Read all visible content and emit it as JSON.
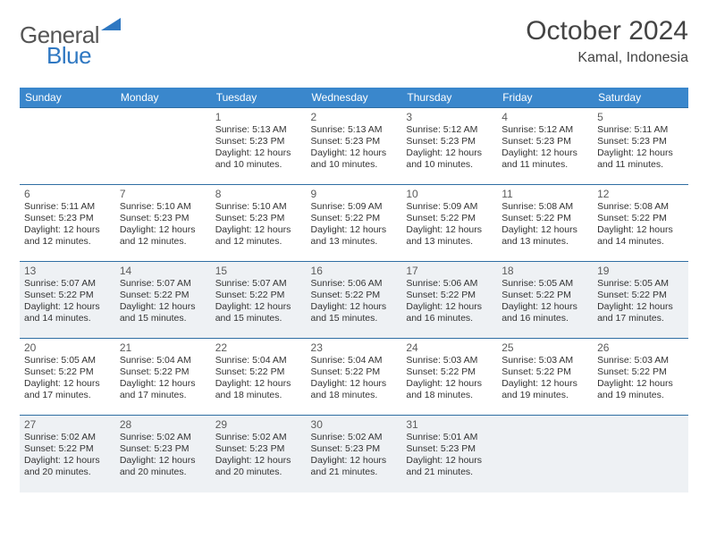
{
  "brand": {
    "part1": "General",
    "part2": "Blue"
  },
  "title": "October 2024",
  "location": "Kamal, Indonesia",
  "colors": {
    "header_bg": "#3a87cc",
    "header_text": "#ffffff",
    "row_border": "#2f6ea3",
    "shaded_bg": "#eef1f4",
    "text": "#333333",
    "brand_gray": "#555555",
    "brand_blue": "#2f78c2",
    "background": "#ffffff"
  },
  "typography": {
    "title_fontsize": 30,
    "location_fontsize": 16,
    "dayheader_fontsize": 12,
    "cell_fontsize": 10.5,
    "font_family": "Arial"
  },
  "day_headers": [
    "Sunday",
    "Monday",
    "Tuesday",
    "Wednesday",
    "Thursday",
    "Friday",
    "Saturday"
  ],
  "layout": {
    "first_weekday_index": 2,
    "num_days": 31,
    "shaded_rows": [
      2,
      4
    ]
  },
  "days": {
    "1": {
      "sunrise": "5:13 AM",
      "sunset": "5:23 PM",
      "daylight": "12 hours and 10 minutes."
    },
    "2": {
      "sunrise": "5:13 AM",
      "sunset": "5:23 PM",
      "daylight": "12 hours and 10 minutes."
    },
    "3": {
      "sunrise": "5:12 AM",
      "sunset": "5:23 PM",
      "daylight": "12 hours and 10 minutes."
    },
    "4": {
      "sunrise": "5:12 AM",
      "sunset": "5:23 PM",
      "daylight": "12 hours and 11 minutes."
    },
    "5": {
      "sunrise": "5:11 AM",
      "sunset": "5:23 PM",
      "daylight": "12 hours and 11 minutes."
    },
    "6": {
      "sunrise": "5:11 AM",
      "sunset": "5:23 PM",
      "daylight": "12 hours and 12 minutes."
    },
    "7": {
      "sunrise": "5:10 AM",
      "sunset": "5:23 PM",
      "daylight": "12 hours and 12 minutes."
    },
    "8": {
      "sunrise": "5:10 AM",
      "sunset": "5:23 PM",
      "daylight": "12 hours and 12 minutes."
    },
    "9": {
      "sunrise": "5:09 AM",
      "sunset": "5:22 PM",
      "daylight": "12 hours and 13 minutes."
    },
    "10": {
      "sunrise": "5:09 AM",
      "sunset": "5:22 PM",
      "daylight": "12 hours and 13 minutes."
    },
    "11": {
      "sunrise": "5:08 AM",
      "sunset": "5:22 PM",
      "daylight": "12 hours and 13 minutes."
    },
    "12": {
      "sunrise": "5:08 AM",
      "sunset": "5:22 PM",
      "daylight": "12 hours and 14 minutes."
    },
    "13": {
      "sunrise": "5:07 AM",
      "sunset": "5:22 PM",
      "daylight": "12 hours and 14 minutes."
    },
    "14": {
      "sunrise": "5:07 AM",
      "sunset": "5:22 PM",
      "daylight": "12 hours and 15 minutes."
    },
    "15": {
      "sunrise": "5:07 AM",
      "sunset": "5:22 PM",
      "daylight": "12 hours and 15 minutes."
    },
    "16": {
      "sunrise": "5:06 AM",
      "sunset": "5:22 PM",
      "daylight": "12 hours and 15 minutes."
    },
    "17": {
      "sunrise": "5:06 AM",
      "sunset": "5:22 PM",
      "daylight": "12 hours and 16 minutes."
    },
    "18": {
      "sunrise": "5:05 AM",
      "sunset": "5:22 PM",
      "daylight": "12 hours and 16 minutes."
    },
    "19": {
      "sunrise": "5:05 AM",
      "sunset": "5:22 PM",
      "daylight": "12 hours and 17 minutes."
    },
    "20": {
      "sunrise": "5:05 AM",
      "sunset": "5:22 PM",
      "daylight": "12 hours and 17 minutes."
    },
    "21": {
      "sunrise": "5:04 AM",
      "sunset": "5:22 PM",
      "daylight": "12 hours and 17 minutes."
    },
    "22": {
      "sunrise": "5:04 AM",
      "sunset": "5:22 PM",
      "daylight": "12 hours and 18 minutes."
    },
    "23": {
      "sunrise": "5:04 AM",
      "sunset": "5:22 PM",
      "daylight": "12 hours and 18 minutes."
    },
    "24": {
      "sunrise": "5:03 AM",
      "sunset": "5:22 PM",
      "daylight": "12 hours and 18 minutes."
    },
    "25": {
      "sunrise": "5:03 AM",
      "sunset": "5:22 PM",
      "daylight": "12 hours and 19 minutes."
    },
    "26": {
      "sunrise": "5:03 AM",
      "sunset": "5:22 PM",
      "daylight": "12 hours and 19 minutes."
    },
    "27": {
      "sunrise": "5:02 AM",
      "sunset": "5:22 PM",
      "daylight": "12 hours and 20 minutes."
    },
    "28": {
      "sunrise": "5:02 AM",
      "sunset": "5:23 PM",
      "daylight": "12 hours and 20 minutes."
    },
    "29": {
      "sunrise": "5:02 AM",
      "sunset": "5:23 PM",
      "daylight": "12 hours and 20 minutes."
    },
    "30": {
      "sunrise": "5:02 AM",
      "sunset": "5:23 PM",
      "daylight": "12 hours and 21 minutes."
    },
    "31": {
      "sunrise": "5:01 AM",
      "sunset": "5:23 PM",
      "daylight": "12 hours and 21 minutes."
    }
  },
  "labels": {
    "sunrise": "Sunrise:",
    "sunset": "Sunset:",
    "daylight": "Daylight:"
  }
}
